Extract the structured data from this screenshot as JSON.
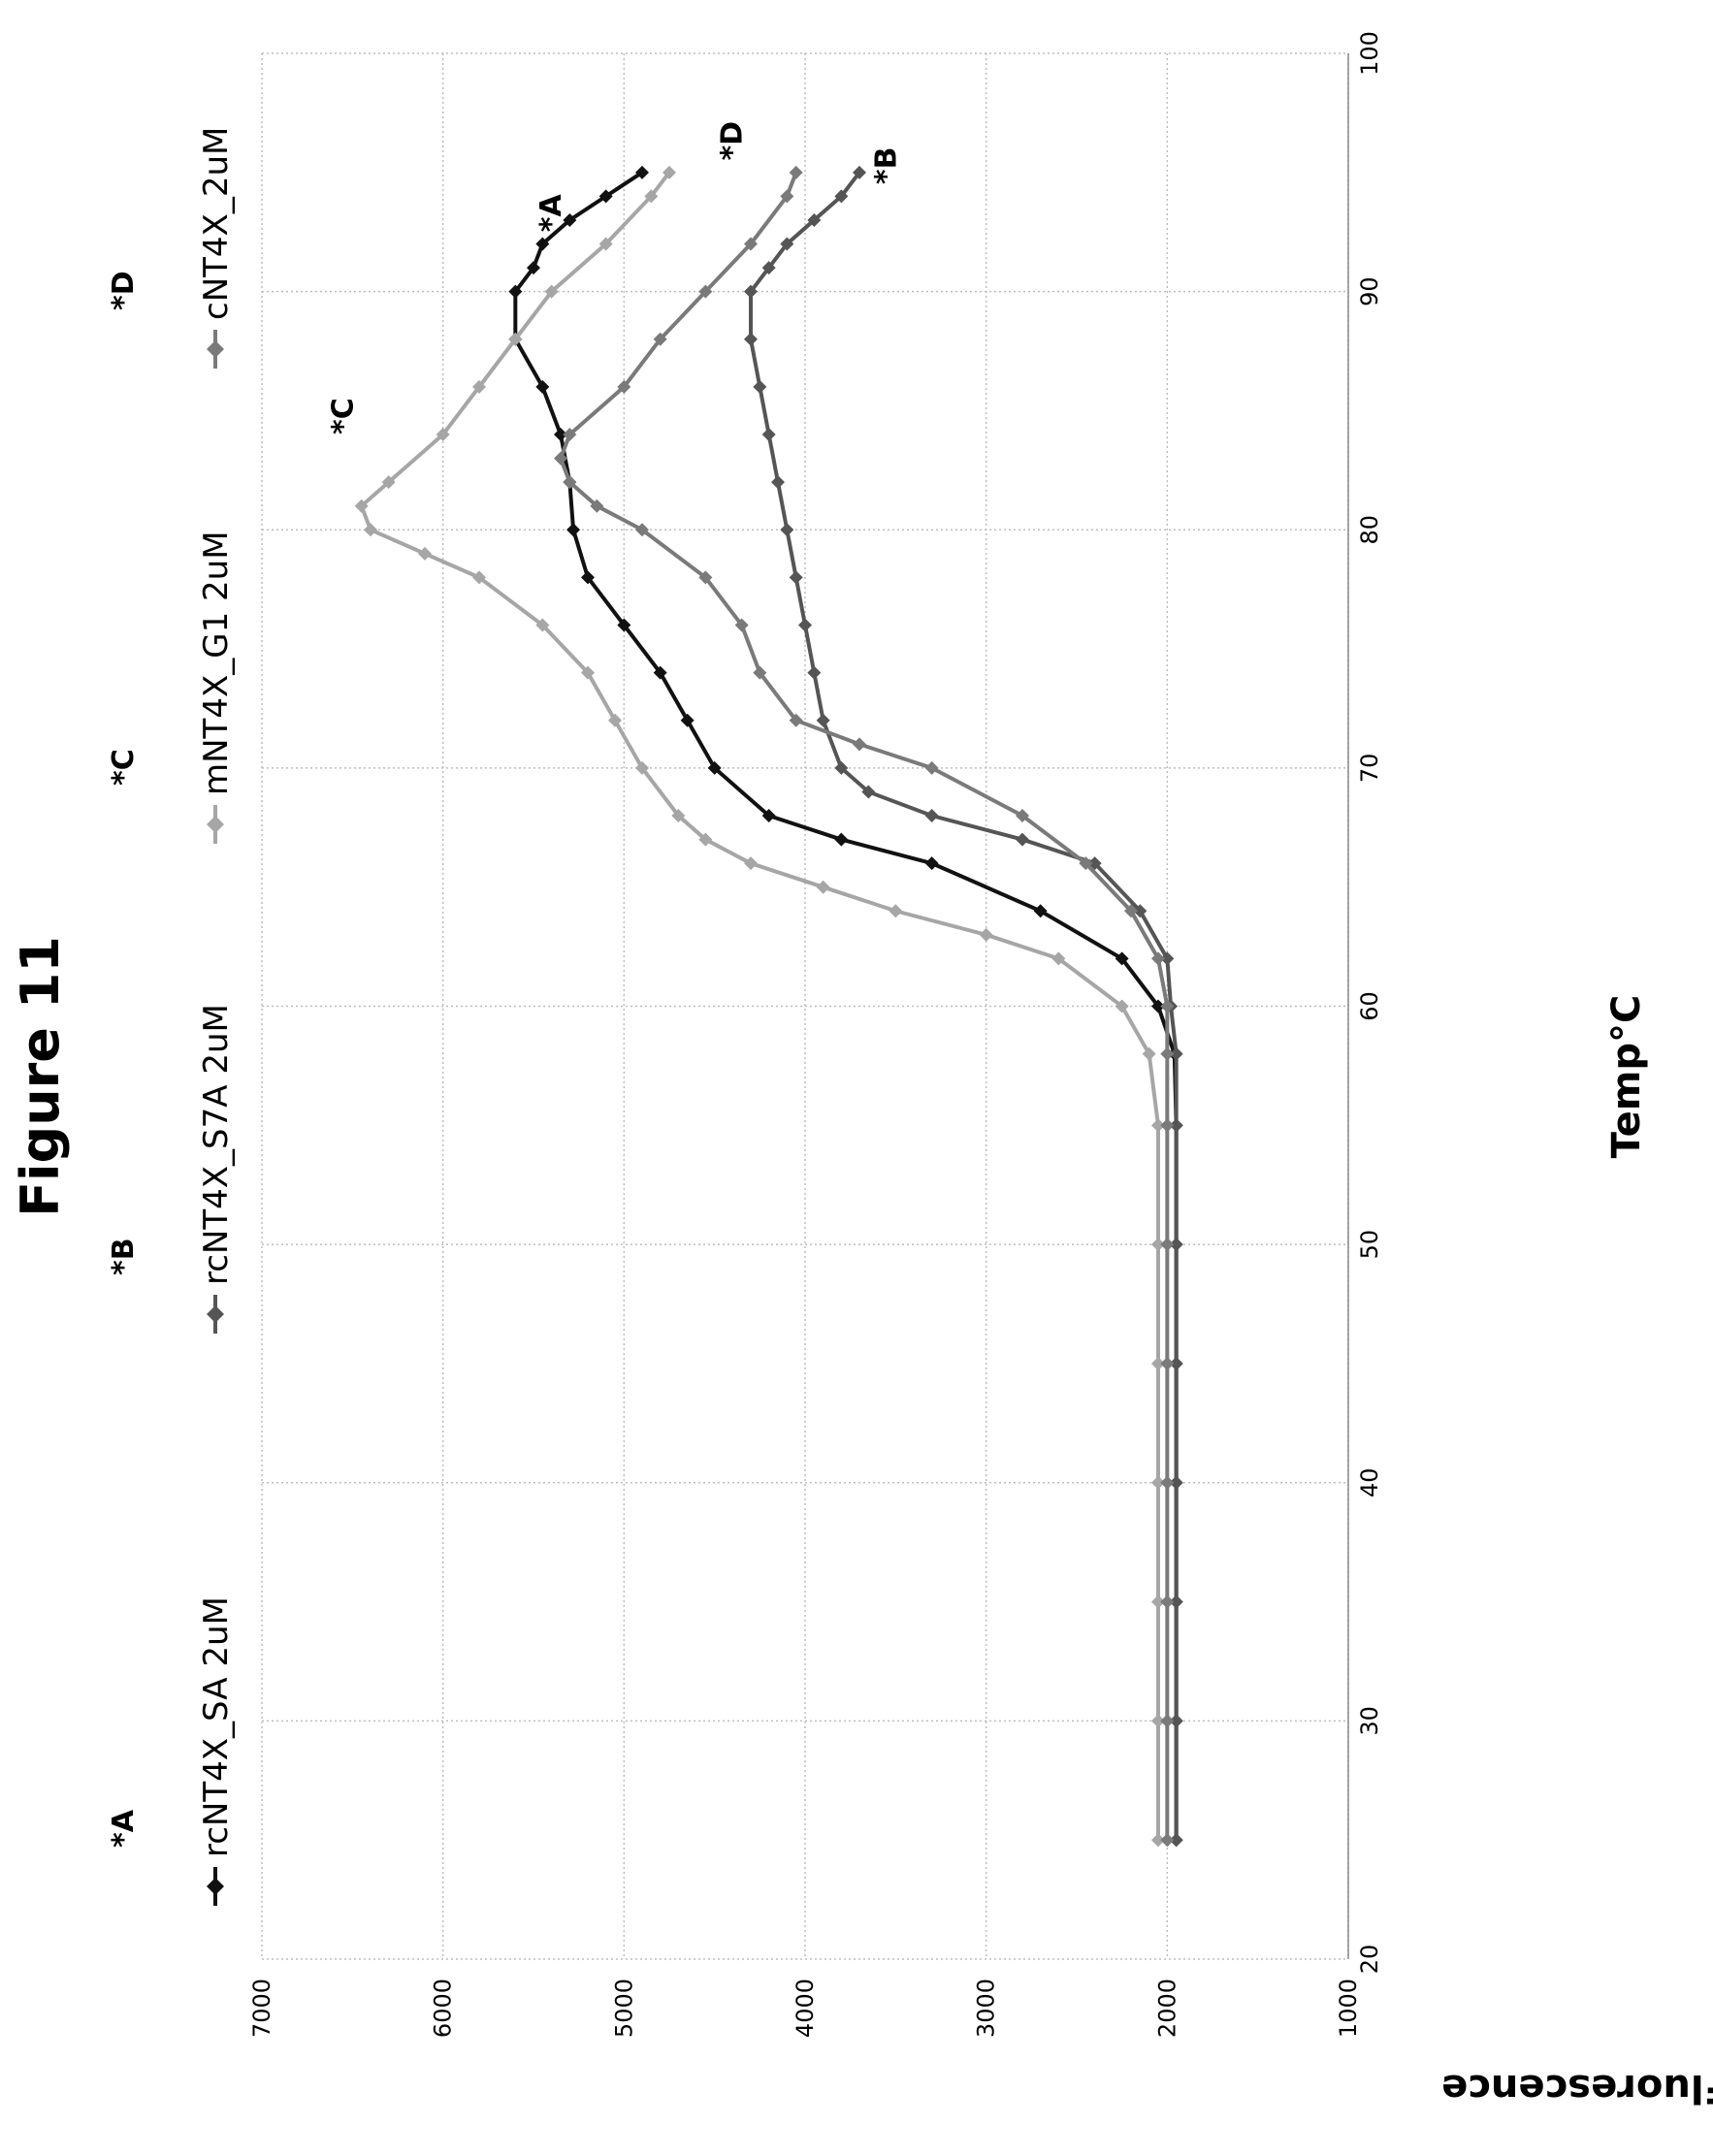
{
  "figure_title": "Figure 11",
  "chart_data": {
    "type": "line",
    "xlabel": "Temp°C",
    "ylabel": "Fluorescence",
    "xlim": [
      20,
      100
    ],
    "ylim": [
      1000,
      7000
    ],
    "x_ticks": [
      20,
      30,
      40,
      50,
      60,
      70,
      80,
      90,
      100
    ],
    "y_ticks": [
      1000,
      2000,
      3000,
      4000,
      5000,
      6000,
      7000
    ],
    "grid": true,
    "legend_position": "top",
    "series": [
      {
        "name": "rcNT4X_SA 2uM",
        "color": "#111111",
        "marker": "diamond",
        "annotation": "*A",
        "points": [
          [
            25,
            1950
          ],
          [
            30,
            1950
          ],
          [
            35,
            1950
          ],
          [
            40,
            1950
          ],
          [
            45,
            1950
          ],
          [
            50,
            1950
          ],
          [
            55,
            1950
          ],
          [
            58,
            1960
          ],
          [
            60,
            2050
          ],
          [
            62,
            2250
          ],
          [
            64,
            2700
          ],
          [
            66,
            3300
          ],
          [
            67,
            3800
          ],
          [
            68,
            4200
          ],
          [
            70,
            4500
          ],
          [
            72,
            4650
          ],
          [
            74,
            4800
          ],
          [
            76,
            5000
          ],
          [
            78,
            5200
          ],
          [
            80,
            5280
          ],
          [
            82,
            5300
          ],
          [
            84,
            5350
          ],
          [
            86,
            5450
          ],
          [
            88,
            5600
          ],
          [
            90,
            5600
          ],
          [
            91,
            5500
          ],
          [
            92,
            5450
          ],
          [
            93,
            5300
          ],
          [
            94,
            5100
          ],
          [
            95,
            4900
          ]
        ]
      },
      {
        "name": "rcNT4X_S7A 2uM",
        "color": "#555555",
        "marker": "diamond",
        "annotation": "*B",
        "points": [
          [
            25,
            1950
          ],
          [
            30,
            1950
          ],
          [
            35,
            1950
          ],
          [
            40,
            1950
          ],
          [
            45,
            1950
          ],
          [
            50,
            1950
          ],
          [
            55,
            1950
          ],
          [
            58,
            1950
          ],
          [
            60,
            1980
          ],
          [
            62,
            2000
          ],
          [
            64,
            2150
          ],
          [
            66,
            2400
          ],
          [
            67,
            2800
          ],
          [
            68,
            3300
          ],
          [
            69,
            3650
          ],
          [
            70,
            3800
          ],
          [
            72,
            3900
          ],
          [
            74,
            3950
          ],
          [
            76,
            4000
          ],
          [
            78,
            4050
          ],
          [
            80,
            4100
          ],
          [
            82,
            4150
          ],
          [
            84,
            4200
          ],
          [
            86,
            4250
          ],
          [
            88,
            4300
          ],
          [
            90,
            4300
          ],
          [
            91,
            4200
          ],
          [
            92,
            4100
          ],
          [
            93,
            3950
          ],
          [
            94,
            3800
          ],
          [
            95,
            3700
          ]
        ]
      },
      {
        "name": "mNT4X_G1 2uM",
        "color": "#a6a6a6",
        "marker": "diamond",
        "annotation": "*C",
        "points": [
          [
            25,
            2050
          ],
          [
            30,
            2050
          ],
          [
            35,
            2050
          ],
          [
            40,
            2050
          ],
          [
            45,
            2050
          ],
          [
            50,
            2050
          ],
          [
            55,
            2050
          ],
          [
            58,
            2100
          ],
          [
            60,
            2250
          ],
          [
            62,
            2600
          ],
          [
            63,
            3000
          ],
          [
            64,
            3500
          ],
          [
            65,
            3900
          ],
          [
            66,
            4300
          ],
          [
            67,
            4550
          ],
          [
            68,
            4700
          ],
          [
            70,
            4900
          ],
          [
            72,
            5050
          ],
          [
            74,
            5200
          ],
          [
            76,
            5450
          ],
          [
            78,
            5800
          ],
          [
            79,
            6100
          ],
          [
            80,
            6400
          ],
          [
            81,
            6450
          ],
          [
            82,
            6300
          ],
          [
            84,
            6000
          ],
          [
            86,
            5800
          ],
          [
            88,
            5600
          ],
          [
            90,
            5400
          ],
          [
            92,
            5100
          ],
          [
            94,
            4850
          ],
          [
            95,
            4750
          ]
        ]
      },
      {
        "name": "cNT4X_2uM",
        "color": "#7a7a7a",
        "marker": "diamond",
        "annotation": "*D",
        "points": [
          [
            25,
            2000
          ],
          [
            30,
            2000
          ],
          [
            35,
            2000
          ],
          [
            40,
            2000
          ],
          [
            45,
            2000
          ],
          [
            50,
            2000
          ],
          [
            55,
            2000
          ],
          [
            58,
            2000
          ],
          [
            60,
            2000
          ],
          [
            62,
            2050
          ],
          [
            64,
            2200
          ],
          [
            66,
            2450
          ],
          [
            68,
            2800
          ],
          [
            70,
            3300
          ],
          [
            71,
            3700
          ],
          [
            72,
            4050
          ],
          [
            74,
            4250
          ],
          [
            76,
            4350
          ],
          [
            78,
            4550
          ],
          [
            80,
            4900
          ],
          [
            81,
            5150
          ],
          [
            82,
            5300
          ],
          [
            83,
            5350
          ],
          [
            84,
            5300
          ],
          [
            86,
            5000
          ],
          [
            88,
            4800
          ],
          [
            90,
            4550
          ],
          [
            92,
            4300
          ],
          [
            94,
            4100
          ],
          [
            95,
            4050
          ]
        ]
      }
    ]
  }
}
